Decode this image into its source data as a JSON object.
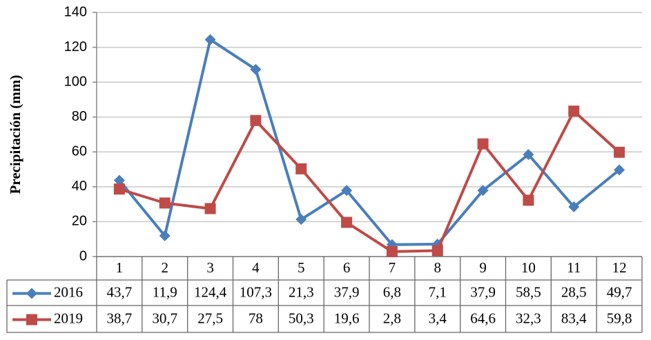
{
  "chart_data": {
    "type": "line",
    "y_label": "Precipitación (mm)",
    "categories": [
      "1",
      "2",
      "3",
      "4",
      "5",
      "6",
      "7",
      "8",
      "9",
      "10",
      "11",
      "12"
    ],
    "series": [
      {
        "name": "2016",
        "color": "#4a7ebb",
        "marker": "diamond",
        "values": [
          43.7,
          11.9,
          124.4,
          107.3,
          21.3,
          37.9,
          6.8,
          7.1,
          37.9,
          58.5,
          28.5,
          49.7
        ],
        "value_labels": [
          "43,7",
          "11,9",
          "124,4",
          "107,3",
          "21,3",
          "37,9",
          "6,8",
          "7,1",
          "37,9",
          "58,5",
          "28,5",
          "49,7"
        ]
      },
      {
        "name": "2019",
        "color": "#be4b48",
        "marker": "square",
        "values": [
          38.7,
          30.7,
          27.5,
          78,
          50.3,
          19.6,
          2.8,
          3.4,
          64.6,
          32.3,
          83.4,
          59.8
        ],
        "value_labels": [
          "38,7",
          "30,7",
          "27,5",
          "78",
          "50,3",
          "19,6",
          "2,8",
          "3,4",
          "64,6",
          "32,3",
          "83,4",
          "59,8"
        ]
      }
    ],
    "ylim": [
      0,
      140
    ],
    "yticks": [
      0,
      20,
      40,
      60,
      80,
      100,
      120,
      140
    ],
    "grid": true
  }
}
